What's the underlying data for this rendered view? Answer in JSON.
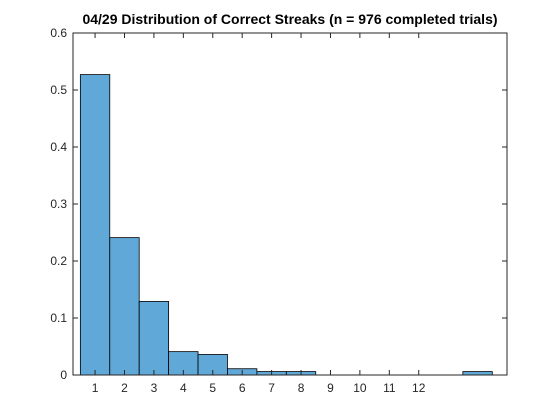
{
  "chart_data": {
    "type": "bar",
    "title": "04/29 Distribution of Correct Streaks (n = 976 completed trials)",
    "xlabel": "",
    "ylabel": "",
    "x_tick_labels": [
      "1",
      "2",
      "3",
      "4",
      "5",
      "6",
      "7",
      "8",
      "9",
      "10",
      "11",
      "12"
    ],
    "x_tick_values": [
      1,
      2,
      3,
      4,
      5,
      6,
      7,
      8,
      9,
      10,
      11,
      12
    ],
    "bins": [
      {
        "x": 1,
        "value": 0.527
      },
      {
        "x": 2,
        "value": 0.241
      },
      {
        "x": 3,
        "value": 0.129
      },
      {
        "x": 4,
        "value": 0.041
      },
      {
        "x": 5,
        "value": 0.036
      },
      {
        "x": 6,
        "value": 0.011
      },
      {
        "x": 7,
        "value": 0.006
      },
      {
        "x": 8,
        "value": 0.006
      },
      {
        "x": 9,
        "value": 0.0
      },
      {
        "x": 10,
        "value": 0.0
      },
      {
        "x": 11,
        "value": 0.0
      },
      {
        "x": 12,
        "value": 0.0
      },
      {
        "x": 13,
        "value": 0.0
      },
      {
        "x": 14,
        "value": 0.006
      }
    ],
    "xlim": [
      0.25,
      15.0
    ],
    "ylim": [
      0,
      0.6
    ],
    "y_ticks": [
      0,
      0.1,
      0.2,
      0.3,
      0.4,
      0.5,
      0.6
    ],
    "y_tick_labels": [
      "0",
      "0.1",
      "0.2",
      "0.3",
      "0.4",
      "0.5",
      "0.6"
    ],
    "grid": false,
    "legend": "none",
    "bar_color": "#5fa8d8",
    "bar_edge_color": "#000000",
    "axis_color": "#262626"
  }
}
